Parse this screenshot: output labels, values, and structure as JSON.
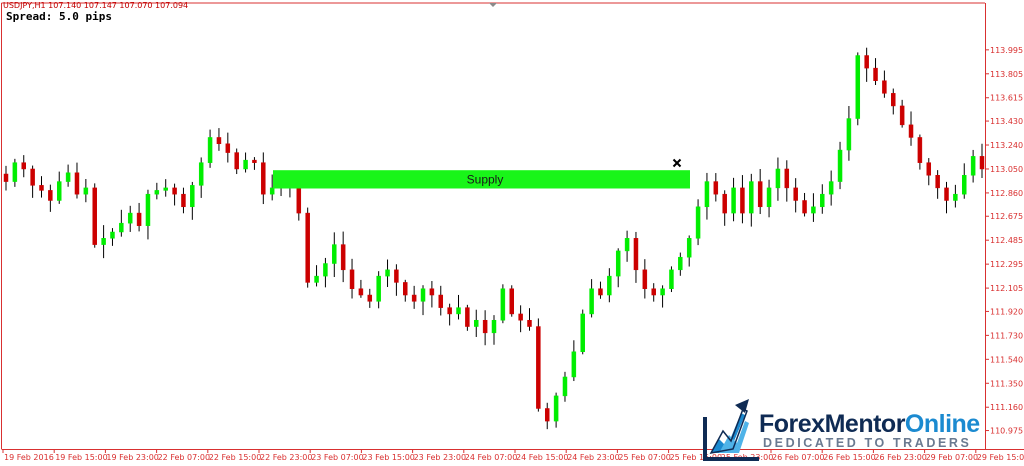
{
  "header": {
    "symbol_line": "USDJPY,H1  107.140 107.147 107.070 107.094",
    "spread_line": "Spread: 5.0 pips"
  },
  "zone": {
    "label": "Supply"
  },
  "logo": {
    "name_part1": "Forex",
    "name_part2": "Mentor",
    "name_part3": "Online",
    "tagline": "DEDICATED TO TRADERS"
  },
  "colors": {
    "bull": "#00ee00",
    "bear": "#cc0000",
    "supply": "#19f519",
    "axis": "#d93030",
    "text": "#000000"
  },
  "chart_data": {
    "type": "candlestick",
    "symbol": "USDJPY",
    "timeframe": "H1",
    "ylim": [
      110.9,
      114.2
    ],
    "y_ticks": [
      "113.995",
      "113.805",
      "113.615",
      "113.430",
      "113.240",
      "113.050",
      "112.860",
      "112.675",
      "112.485",
      "112.295",
      "112.105",
      "111.920",
      "111.730",
      "111.540",
      "111.350",
      "111.160",
      "110.975"
    ],
    "x_ticks": [
      "19 Feb 2016",
      "19 Feb 15:00",
      "19 Feb 23:00",
      "22 Feb 07:00",
      "22 Feb 15:00",
      "22 Feb 23:00",
      "23 Feb 07:00",
      "23 Feb 15:00",
      "23 Feb 23:00",
      "24 Feb 07:00",
      "24 Feb 15:00",
      "24 Feb 23:00",
      "25 Feb 07:00",
      "25 Feb 15:00",
      "25 Feb 23:00",
      "26 Feb 07:00",
      "26 Feb 15:00",
      "26 Feb 23:00",
      "29 Feb 07:00",
      "29 Feb 15:00"
    ],
    "supply_zone": {
      "top": 113.04,
      "bottom": 112.895,
      "label": "Supply"
    },
    "close_values": [
      112.95,
      113.1,
      113.05,
      112.92,
      112.88,
      112.8,
      112.95,
      113.02,
      112.85,
      112.9,
      112.45,
      112.5,
      112.55,
      112.62,
      112.7,
      112.6,
      112.85,
      112.88,
      112.9,
      112.85,
      112.75,
      112.92,
      113.1,
      113.3,
      113.25,
      113.18,
      113.05,
      113.12,
      113.1,
      112.85,
      112.9,
      112.92,
      112.95,
      112.7,
      112.15,
      112.2,
      112.3,
      112.45,
      112.25,
      112.1,
      112.05,
      112.0,
      112.2,
      112.25,
      112.15,
      112.05,
      112.0,
      112.1,
      112.05,
      111.95,
      111.9,
      111.95,
      111.8,
      111.85,
      111.75,
      111.85,
      112.1,
      111.9,
      111.85,
      111.8,
      111.15,
      111.05,
      111.25,
      111.4,
      111.6,
      111.9,
      112.1,
      112.05,
      112.2,
      112.4,
      112.5,
      112.25,
      112.1,
      112.05,
      112.1,
      112.25,
      112.35,
      112.5,
      112.75,
      112.95,
      112.85,
      112.7,
      112.9,
      112.7,
      112.95,
      112.75,
      112.9,
      113.05,
      112.9,
      112.8,
      112.7,
      112.75,
      112.85,
      112.95,
      113.2,
      113.45,
      113.95,
      113.85,
      113.75,
      113.65,
      113.55,
      113.4,
      113.3,
      113.1,
      113.0,
      112.9,
      112.8,
      112.85,
      113.0,
      113.15,
      113.05
    ]
  }
}
